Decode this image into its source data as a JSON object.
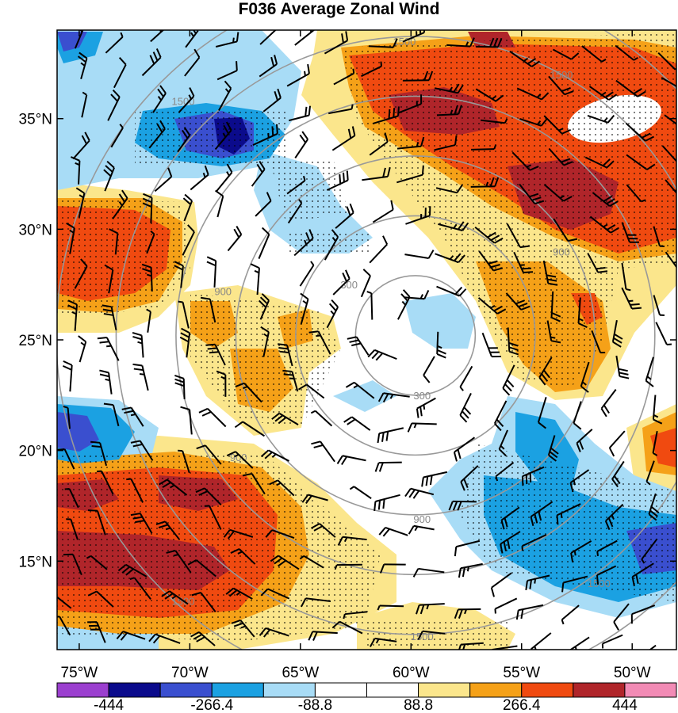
{
  "title": "F036 Average Zonal Wind",
  "map": {
    "lon_range": [
      -76,
      -48
    ],
    "lat_range": [
      11,
      39
    ],
    "lon_ticks": [
      {
        "value": -75,
        "label": "75°W"
      },
      {
        "value": -70,
        "label": "70°W"
      },
      {
        "value": -65,
        "label": "65°W"
      },
      {
        "value": -60,
        "label": "60°W"
      },
      {
        "value": -55,
        "label": "55°W"
      },
      {
        "value": -50,
        "label": "50°W"
      }
    ],
    "lat_ticks": [
      {
        "value": 35,
        "label": "35°N"
      },
      {
        "value": 30,
        "label": "30°N"
      },
      {
        "value": 25,
        "label": "25°N"
      },
      {
        "value": 20,
        "label": "20°N"
      },
      {
        "value": 15,
        "label": "15°N"
      }
    ],
    "range_rings": {
      "center": {
        "lon": -59.8,
        "lat": 25.2
      },
      "values": [
        300,
        900,
        1500
      ],
      "color": "#999999"
    },
    "contour_labels": [
      {
        "text": "300",
        "lon": -62.8,
        "lat": 27.5
      },
      {
        "text": "300",
        "lon": -59.5,
        "lat": 22.5
      },
      {
        "text": "900",
        "lon": -68.5,
        "lat": 27.2
      },
      {
        "text": "900",
        "lon": -67.8,
        "lat": 19.7
      },
      {
        "text": "900",
        "lon": -59.5,
        "lat": 16.9
      },
      {
        "text": "900",
        "lon": -53.2,
        "lat": 29.0
      },
      {
        "text": "1500",
        "lon": -70.3,
        "lat": 35.8
      },
      {
        "text": "1500",
        "lon": -60.3,
        "lat": 38.5
      },
      {
        "text": "1500",
        "lon": -53.2,
        "lat": 37.0
      },
      {
        "text": "1500",
        "lon": -70.3,
        "lat": 13.2
      },
      {
        "text": "1500",
        "lon": -59.5,
        "lat": 11.6
      },
      {
        "text": "1500",
        "lon": -51.5,
        "lat": 14.0
      }
    ]
  },
  "colorbar": {
    "colors": [
      "#9b3fcf",
      "#0b0b8c",
      "#3a4fcf",
      "#1ba1e2",
      "#a8dcf6",
      "#ffffff",
      "#ffffff",
      "#fbe68c",
      "#f5a118",
      "#f04a10",
      "#b0252a",
      "#f28bb5"
    ],
    "labels": [
      "-444",
      "-266.4",
      "-88.8",
      "88.8",
      "266.4",
      "444"
    ]
  },
  "field_colors": {
    "strong_pos": "#b0252a",
    "pos": "#f04a10",
    "mid_pos": "#f5a118",
    "weak_pos": "#fbe68c",
    "weak_neg": "#a8dcf6",
    "neg": "#1ba1e2",
    "mid_neg": "#3a4fcf",
    "strong_neg": "#0b0b8c"
  }
}
